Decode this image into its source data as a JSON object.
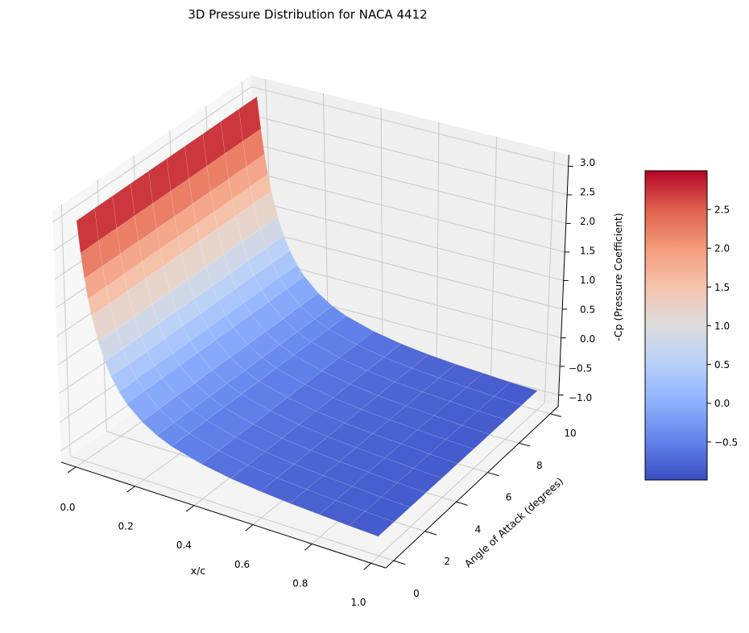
{
  "chart_data": {
    "type": "surface3d",
    "title": "3D Pressure Distribution for NACA 4412",
    "xlabel": "x/c",
    "ylabel": "Angle of Attack (degrees)",
    "zlabel": "-Cp (Pressure Coefficient)",
    "colormap": "coolwarm",
    "x": [
      0,
      0.01,
      0.02,
      0.03,
      0.04,
      0.06,
      0.08,
      0.1,
      0.125,
      0.15,
      0.2,
      0.25,
      0.3,
      0.4,
      0.5,
      0.6,
      0.7,
      0.8,
      0.9,
      1.0
    ],
    "angles": [
      0,
      1,
      2,
      3,
      4,
      5,
      6,
      7,
      8,
      9,
      10
    ],
    "z_profile": [
      3.0,
      2.45,
      2.02,
      1.68,
      1.4,
      0.98,
      0.67,
      0.44,
      0.22,
      0.05,
      -0.18,
      -0.34,
      -0.45,
      -0.59,
      -0.68,
      -0.74,
      -0.78,
      -0.81,
      -0.84,
      -0.86
    ],
    "z_note": "same -Cp profile for every angle of attack",
    "xlim": [
      -0.05,
      1.05
    ],
    "ylim": [
      -0.5,
      10.5
    ],
    "zlim": [
      -1.2,
      3.2
    ],
    "x_ticks": [
      "0.0",
      "0.2",
      "0.4",
      "0.6",
      "0.8",
      "1.0"
    ],
    "y_ticks": [
      "0",
      "2",
      "4",
      "6",
      "8",
      "10"
    ],
    "z_ticks": [
      "−1.0",
      "−0.5",
      "0.0",
      "0.5",
      "1.0",
      "1.5",
      "2.0",
      "2.5",
      "3.0"
    ],
    "grid": true,
    "colorbar": {
      "placement": "right",
      "range": [
        -0.99,
        3.0
      ],
      "ticks": [
        "−0.5",
        "0.0",
        "0.5",
        "1.0",
        "1.5",
        "2.0",
        "2.5"
      ],
      "tick_values": [
        -0.5,
        0,
        0.5,
        1.0,
        1.5,
        2.0,
        2.5
      ]
    }
  }
}
